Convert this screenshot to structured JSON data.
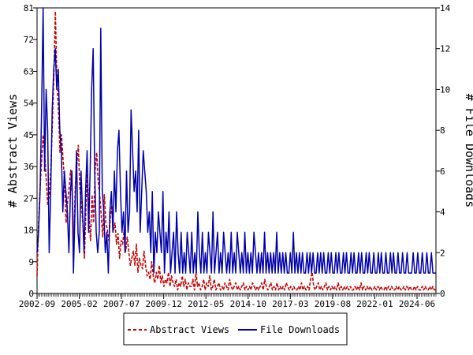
{
  "chart_data": {
    "type": "line",
    "y_left_label": "# Abstract Views",
    "y_right_label": "# File Downloads",
    "y_left_ticks": [
      0,
      9,
      18,
      27,
      36,
      45,
      54,
      63,
      72,
      81
    ],
    "y_right_ticks": [
      0,
      2,
      4,
      6,
      8,
      10,
      12,
      14
    ],
    "y_left_lim": [
      0,
      81
    ],
    "y_right_lim": [
      0,
      14
    ],
    "x_start": "2002-09",
    "x_end": "2025-07",
    "x_tick_labels": [
      "2002-09",
      "2005-02",
      "2007-07",
      "2009-12",
      "2012-05",
      "2014-10",
      "2017-03",
      "2019-08",
      "2022-01",
      "2024-06"
    ],
    "grid": false,
    "legend_position": "bottom",
    "series": [
      {
        "name": "Abstract Views",
        "axis": "left",
        "color": "#cc0000",
        "style": "dashed",
        "values": [
          5,
          20,
          30,
          38,
          45,
          40,
          32,
          25,
          28,
          35,
          48,
          62,
          80,
          60,
          52,
          40,
          45,
          38,
          32,
          20,
          26,
          30,
          35,
          28,
          15,
          30,
          36,
          42,
          30,
          25,
          20,
          10,
          25,
          34,
          22,
          15,
          28,
          20,
          35,
          40,
          32,
          28,
          22,
          16,
          28,
          20,
          18,
          15,
          22,
          25,
          18,
          20,
          14,
          17,
          10,
          15,
          14,
          18,
          12,
          16,
          12,
          8,
          10,
          12,
          8,
          14,
          6,
          10,
          8,
          7,
          12,
          8,
          5,
          6,
          4,
          9,
          5,
          3,
          6,
          4,
          8,
          3,
          5,
          2,
          4,
          3,
          6,
          2,
          5,
          3,
          2,
          4,
          1,
          3,
          2,
          5,
          2,
          4,
          1,
          3,
          2,
          2,
          4,
          1,
          6,
          2,
          3,
          1,
          2,
          4,
          1,
          3,
          2,
          5,
          1,
          2,
          4,
          1,
          2,
          3,
          1,
          2,
          1,
          3,
          2,
          1,
          4,
          2,
          1,
          2,
          3,
          1,
          2,
          1,
          2,
          3,
          1,
          2,
          1,
          2,
          1,
          3,
          2,
          1,
          2,
          1,
          2,
          3,
          1,
          4,
          2,
          1,
          2,
          3,
          1,
          2,
          1,
          3,
          1,
          2,
          1,
          2,
          1,
          3,
          2,
          1,
          2,
          1,
          2,
          1,
          1,
          2,
          1,
          3,
          1,
          2,
          1,
          2,
          1,
          4,
          6,
          2,
          1,
          2,
          3,
          1,
          2,
          1,
          2,
          3,
          1,
          2,
          1,
          2,
          1,
          2,
          1,
          3,
          1,
          2,
          1,
          2,
          1,
          2,
          1,
          2,
          1,
          1,
          2,
          1,
          2,
          1,
          3,
          1,
          2,
          1,
          2,
          1,
          2,
          1,
          1,
          2,
          1,
          2,
          1,
          2,
          1,
          1,
          2,
          1,
          2,
          1,
          2,
          1,
          1,
          2,
          1,
          2,
          1,
          1,
          2,
          1,
          2,
          1,
          2,
          1,
          1,
          2,
          1,
          2,
          1,
          1,
          2,
          1,
          2,
          1,
          1,
          2,
          1,
          2,
          1,
          1
        ]
      },
      {
        "name": "File Downloads",
        "axis": "right",
        "color": "#0000aa",
        "style": "solid",
        "values": [
          2,
          3,
          5,
          9,
          14,
          6,
          10,
          8,
          2,
          5,
          9,
          11,
          12,
          10,
          11,
          8,
          7,
          4,
          6,
          5,
          4,
          2,
          5,
          6,
          1,
          4,
          7,
          3,
          2,
          6,
          4,
          2,
          5,
          7,
          3,
          6,
          10,
          12,
          6,
          3,
          2,
          3,
          13,
          5,
          4,
          2,
          3,
          1,
          4,
          5,
          3,
          6,
          4,
          7,
          8,
          5,
          3,
          4,
          2,
          6,
          3,
          4,
          9,
          7,
          5,
          6,
          4,
          8,
          3,
          5,
          7,
          6,
          5,
          3,
          4,
          2,
          5,
          1,
          3,
          2,
          4,
          3,
          2,
          5,
          1,
          3,
          2,
          4,
          1,
          2,
          3,
          1,
          4,
          2,
          1,
          3,
          1,
          2,
          1,
          3,
          2,
          1,
          3,
          1,
          2,
          1,
          4,
          2,
          1,
          3,
          1,
          2,
          1,
          3,
          2,
          1,
          4,
          1,
          2,
          3,
          1,
          2,
          1,
          3,
          2,
          1,
          2,
          1,
          3,
          1,
          2,
          1,
          3,
          2,
          1,
          2,
          1,
          3,
          1,
          2,
          1,
          2,
          1,
          3,
          2,
          1,
          2,
          1,
          2,
          1,
          3,
          1,
          2,
          1,
          2,
          1,
          2,
          1,
          3,
          1,
          2,
          1,
          2,
          1,
          2,
          1,
          1,
          2,
          1,
          3,
          1,
          2,
          1,
          2,
          1,
          2,
          1,
          1,
          2,
          1,
          2,
          1,
          2,
          1,
          1,
          2,
          1,
          2,
          1,
          2,
          1,
          1,
          2,
          1,
          2,
          1,
          1,
          2,
          1,
          2,
          1,
          1,
          2,
          1,
          2,
          1,
          1,
          2,
          1,
          2,
          1,
          1,
          2,
          1,
          2,
          1,
          1,
          2,
          1,
          2,
          1,
          1,
          2,
          1,
          1,
          2,
          1,
          2,
          1,
          1,
          2,
          1,
          1,
          2,
          1,
          2,
          1,
          1,
          2,
          1,
          1,
          2,
          1,
          1,
          2,
          1,
          1,
          1,
          2,
          1,
          1,
          2,
          1,
          1,
          2,
          1,
          1,
          2,
          1,
          1,
          2,
          1,
          1,
          1
        ]
      }
    ]
  }
}
